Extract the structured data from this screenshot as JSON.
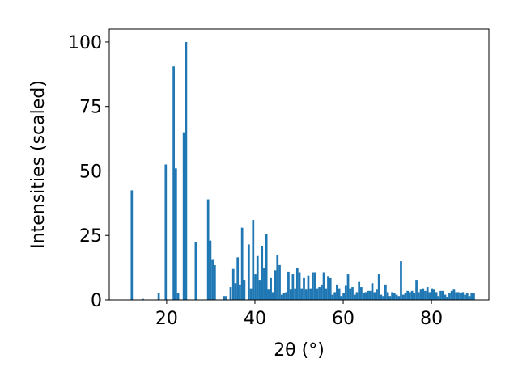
{
  "chart_data": {
    "type": "bar",
    "xlabel": "2θ (°)",
    "ylabel": "Intensities (scaled)",
    "xlim": [
      7,
      93
    ],
    "ylim": [
      0,
      105
    ],
    "xticks": [
      20,
      40,
      60,
      80
    ],
    "yticks": [
      0,
      25,
      50,
      75,
      100
    ],
    "bar_color": "#1f77b4",
    "bar_width": 0.5,
    "x": [
      12.1,
      14.6,
      18.2,
      19.8,
      21.6,
      22.1,
      22.6,
      23.9,
      24.4,
      26.6,
      29.4,
      29.9,
      30.4,
      30.9,
      33.0,
      33.5,
      34.5,
      35.1,
      35.6,
      36.1,
      36.6,
      37.1,
      37.6,
      38.6,
      39.1,
      39.6,
      40.1,
      40.6,
      41.1,
      41.6,
      42.1,
      42.6,
      43.1,
      43.6,
      44.1,
      44.6,
      45.1,
      45.6,
      46.1,
      46.6,
      47.1,
      47.6,
      48.1,
      48.6,
      49.1,
      49.6,
      50.1,
      50.6,
      51.1,
      51.6,
      52.1,
      52.6,
      53.1,
      53.6,
      54.1,
      54.6,
      55.1,
      55.6,
      56.1,
      56.6,
      57.1,
      57.6,
      58.1,
      58.6,
      59.1,
      59.6,
      60.1,
      60.6,
      61.1,
      61.6,
      62.1,
      62.6,
      63.1,
      63.6,
      64.1,
      64.6,
      65.1,
      65.6,
      66.1,
      66.6,
      67.1,
      67.6,
      68.1,
      68.6,
      69.1,
      69.6,
      70.1,
      70.6,
      71.1,
      71.6,
      72.1,
      72.6,
      73.1,
      73.6,
      74.1,
      74.6,
      75.1,
      75.6,
      76.1,
      76.6,
      77.1,
      77.6,
      78.1,
      78.6,
      79.1,
      79.6,
      80.1,
      80.6,
      81.1,
      81.6,
      82.1,
      82.6,
      83.1,
      83.6,
      84.1,
      84.6,
      85.1,
      85.6,
      86.1,
      86.6,
      87.1,
      87.6,
      88.1,
      88.6,
      89.1,
      89.6
    ],
    "values": [
      42.5,
      0.4,
      2.5,
      52.5,
      90.5,
      51.0,
      2.5,
      65.0,
      100.0,
      22.5,
      39.0,
      23.0,
      15.5,
      13.5,
      1.5,
      1.5,
      5.0,
      12.0,
      6.5,
      16.5,
      6.0,
      28.0,
      7.5,
      21.5,
      4.5,
      31.0,
      10.0,
      17.0,
      7.5,
      21.0,
      12.5,
      25.5,
      4.0,
      8.5,
      3.0,
      11.5,
      17.5,
      13.5,
      2.0,
      2.5,
      3.0,
      11.0,
      4.0,
      10.0,
      4.5,
      12.5,
      10.5,
      4.5,
      8.5,
      4.0,
      9.5,
      4.5,
      10.5,
      10.5,
      4.5,
      5.0,
      6.0,
      10.5,
      4.5,
      9.0,
      8.5,
      2.0,
      3.0,
      6.0,
      4.5,
      1.5,
      2.5,
      5.5,
      10.0,
      4.5,
      5.0,
      2.0,
      3.0,
      7.0,
      5.0,
      2.5,
      3.0,
      3.5,
      3.5,
      6.5,
      3.0,
      4.0,
      10.0,
      2.0,
      1.5,
      6.0,
      3.0,
      1.5,
      3.0,
      2.5,
      2.0,
      1.5,
      15.0,
      2.0,
      2.5,
      3.5,
      3.0,
      3.5,
      2.5,
      7.5,
      3.0,
      4.0,
      4.5,
      3.5,
      5.0,
      3.0,
      4.5,
      4.0,
      3.0,
      1.5,
      3.5,
      3.5,
      2.0,
      1.0,
      2.5,
      3.5,
      4.0,
      3.0,
      3.0,
      2.5,
      3.0,
      2.0,
      2.5,
      1.5,
      2.5,
      2.5
    ]
  }
}
